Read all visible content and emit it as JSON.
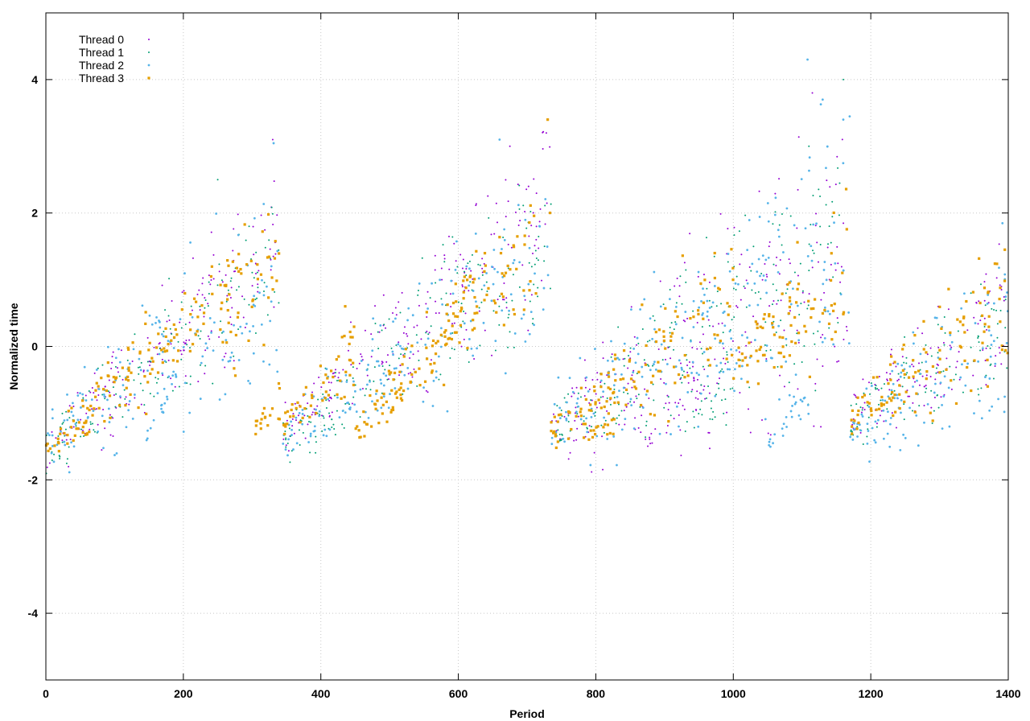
{
  "chart_data": {
    "type": "scatter",
    "title": "",
    "xlabel": "Period",
    "ylabel": "Normalized time",
    "xlim": [
      0,
      1400
    ],
    "ylim": [
      -5,
      5
    ],
    "x_ticks": [
      0,
      200,
      400,
      600,
      800,
      1000,
      1200,
      1400
    ],
    "y_ticks": [
      -4,
      -2,
      0,
      2,
      4
    ],
    "grid": true,
    "legend_position": "top-left",
    "series": [
      {
        "name": "Thread 0",
        "color": "#9400d3",
        "marker": "small-dot",
        "trend": [
          {
            "x": [
              0,
              340
            ],
            "y": [
              -1.6,
              1.5
            ],
            "spread": 0.45,
            "n": 170
          },
          {
            "x": [
              345,
              735
            ],
            "y": [
              -1.2,
              2.0
            ],
            "spread": 0.5,
            "n": 200
          },
          {
            "x": [
              735,
              1170
            ],
            "y": [
              -1.3,
              1.3
            ],
            "spread": 0.8,
            "n": 240
          },
          {
            "x": [
              870,
              960
            ],
            "y": [
              -1.5,
              -0.5
            ],
            "spread": 0.15,
            "n": 30
          },
          {
            "x": [
              1170,
              1400
            ],
            "y": [
              -1.1,
              0.4
            ],
            "spread": 0.45,
            "n": 120
          }
        ],
        "outliers": [
          [
            330,
            3.1
          ],
          [
            1115,
            3.8
          ],
          [
            675,
            3.0
          ],
          [
            728,
            3.2
          ]
        ]
      },
      {
        "name": "Thread 1",
        "color": "#009e73",
        "marker": "small-dot",
        "trend": [
          {
            "x": [
              0,
              340
            ],
            "y": [
              -1.6,
              1.3
            ],
            "spread": 0.45,
            "n": 150
          },
          {
            "x": [
              345,
              735
            ],
            "y": [
              -1.4,
              1.6
            ],
            "spread": 0.5,
            "n": 180
          },
          {
            "x": [
              735,
              1170
            ],
            "y": [
              -1.3,
              1.6
            ],
            "spread": 0.7,
            "n": 220
          },
          {
            "x": [
              930,
              1000
            ],
            "y": [
              -1.2,
              -0.6
            ],
            "spread": 0.15,
            "n": 25
          },
          {
            "x": [
              1170,
              1400
            ],
            "y": [
              -1.1,
              0.3
            ],
            "spread": 0.45,
            "n": 110
          }
        ],
        "outliers": [
          [
            1160,
            4.0
          ],
          [
            250,
            2.5
          ],
          [
            1110,
            3.0
          ]
        ]
      },
      {
        "name": "Thread 2",
        "color": "#56b4e9",
        "marker": "dot",
        "trend": [
          {
            "x": [
              0,
              340
            ],
            "y": [
              -1.5,
              1.1
            ],
            "spread": 0.6,
            "n": 150
          },
          {
            "x": [
              140,
              190
            ],
            "y": [
              -1.4,
              -0.6
            ],
            "spread": 0.15,
            "n": 20
          },
          {
            "x": [
              345,
              735
            ],
            "y": [
              -1.3,
              1.4
            ],
            "spread": 0.5,
            "n": 180
          },
          {
            "x": [
              735,
              1170
            ],
            "y": [
              -1.3,
              1.5
            ],
            "spread": 0.75,
            "n": 230
          },
          {
            "x": [
              1050,
              1110
            ],
            "y": [
              -1.5,
              -0.7
            ],
            "spread": 0.15,
            "n": 25
          },
          {
            "x": [
              1170,
              1400
            ],
            "y": [
              -1.3,
              0.3
            ],
            "spread": 0.5,
            "n": 120
          }
        ],
        "outliers": [
          [
            1108,
            4.3
          ],
          [
            1130,
            3.7
          ],
          [
            1160,
            3.4
          ],
          [
            660,
            3.1
          ]
        ]
      },
      {
        "name": "Thread 3",
        "color": "#e69f00",
        "marker": "square",
        "trend": [
          {
            "x": [
              0,
              150
            ],
            "y": [
              -1.6,
              -0.1
            ],
            "spread": 0.3,
            "n": 80
          },
          {
            "x": [
              150,
              340
            ],
            "y": [
              -0.2,
              1.3
            ],
            "spread": 0.45,
            "n": 90
          },
          {
            "x": [
              305,
              345
            ],
            "y": [
              -1.2,
              -0.8
            ],
            "spread": 0.15,
            "n": 18
          },
          {
            "x": [
              345,
              450
            ],
            "y": [
              -1.2,
              0.0
            ],
            "spread": 0.25,
            "n": 55
          },
          {
            "x": [
              450,
              735
            ],
            "y": [
              -1.3,
              1.9
            ],
            "spread": 0.35,
            "n": 150
          },
          {
            "x": [
              735,
              1000
            ],
            "y": [
              -1.4,
              0.6
            ],
            "spread": 0.45,
            "n": 140
          },
          {
            "x": [
              1000,
              1170
            ],
            "y": [
              -0.4,
              1.2
            ],
            "spread": 0.5,
            "n": 80
          },
          {
            "x": [
              1170,
              1400
            ],
            "y": [
              -1.1,
              0.7
            ],
            "spread": 0.4,
            "n": 110
          }
        ],
        "outliers": [
          [
            730,
            3.4
          ],
          [
            1395,
            1.45
          ]
        ]
      }
    ]
  }
}
